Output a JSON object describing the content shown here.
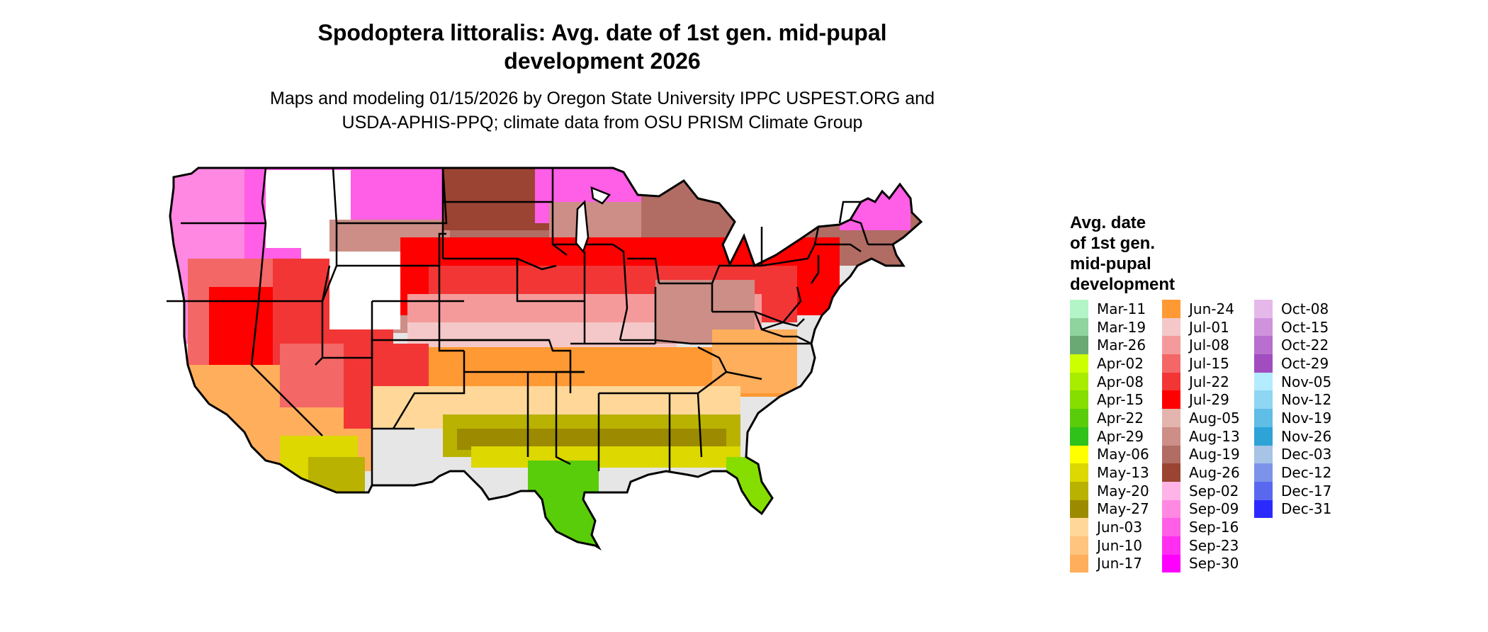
{
  "title_line1": "Spodoptera littoralis: Avg. date of 1st gen. mid-pupal",
  "title_line2": "development 2026",
  "subtitle_line1": "Maps and modeling 01/15/2026 by Oregon State University IPPC USPEST.ORG and",
  "subtitle_line2": "USDA-APHIS-PPQ; climate data from OSU PRISM Climate Group",
  "legend": {
    "title": [
      "Avg. date",
      "of 1st gen.",
      "mid-pupal",
      "development"
    ],
    "columns": [
      [
        {
          "label": "Mar-11",
          "color": "#b3f5c6"
        },
        {
          "label": "Mar-19",
          "color": "#8fd39f"
        },
        {
          "label": "Mar-26",
          "color": "#6aa874"
        },
        {
          "label": "Apr-02",
          "color": "#ccff00"
        },
        {
          "label": "Apr-08",
          "color": "#a8ec00"
        },
        {
          "label": "Apr-15",
          "color": "#86de00"
        },
        {
          "label": "Apr-22",
          "color": "#5acd0a"
        },
        {
          "label": "Apr-29",
          "color": "#2ec21a"
        },
        {
          "label": "May-06",
          "color": "#ffff00"
        },
        {
          "label": "May-13",
          "color": "#dcd800"
        },
        {
          "label": "May-20",
          "color": "#b9b200"
        },
        {
          "label": "May-27",
          "color": "#9c8a00"
        },
        {
          "label": "Jun-03",
          "color": "#ffd899"
        },
        {
          "label": "Jun-10",
          "color": "#ffc47e"
        },
        {
          "label": "Jun-17",
          "color": "#ffae5c"
        }
      ],
      [
        {
          "label": "Jun-24",
          "color": "#ff9933"
        },
        {
          "label": "Jul-01",
          "color": "#f4c8c8"
        },
        {
          "label": "Jul-08",
          "color": "#f59a9a"
        },
        {
          "label": "Jul-15",
          "color": "#f46767"
        },
        {
          "label": "Jul-22",
          "color": "#f23636"
        },
        {
          "label": "Jul-29",
          "color": "#ff0000"
        },
        {
          "label": "Aug-05",
          "color": "#e3b5ae"
        },
        {
          "label": "Aug-13",
          "color": "#cc8e86"
        },
        {
          "label": "Aug-19",
          "color": "#b16c63"
        },
        {
          "label": "Aug-26",
          "color": "#9b4433"
        },
        {
          "label": "Sep-02",
          "color": "#ffb3e6"
        },
        {
          "label": "Sep-09",
          "color": "#ff88e2"
        },
        {
          "label": "Sep-16",
          "color": "#ff5ee6"
        },
        {
          "label": "Sep-23",
          "color": "#ff2ef0"
        },
        {
          "label": "Sep-30",
          "color": "#ff00ff"
        }
      ],
      [
        {
          "label": "Oct-08",
          "color": "#e6b8ea"
        },
        {
          "label": "Oct-15",
          "color": "#cf93dc"
        },
        {
          "label": "Oct-22",
          "color": "#b86fce"
        },
        {
          "label": "Oct-29",
          "color": "#a14dbf"
        },
        {
          "label": "Nov-05",
          "color": "#b3ecff"
        },
        {
          "label": "Nov-12",
          "color": "#8ed6f2"
        },
        {
          "label": "Nov-19",
          "color": "#5fbde6"
        },
        {
          "label": "Nov-26",
          "color": "#2da3d8"
        },
        {
          "label": "Dec-03",
          "color": "#a7c3e6"
        },
        {
          "label": "Dec-12",
          "color": "#7d93ea"
        },
        {
          "label": "Dec-17",
          "color": "#5a68f0"
        },
        {
          "label": "Dec-31",
          "color": "#2a2aff"
        }
      ]
    ]
  }
}
